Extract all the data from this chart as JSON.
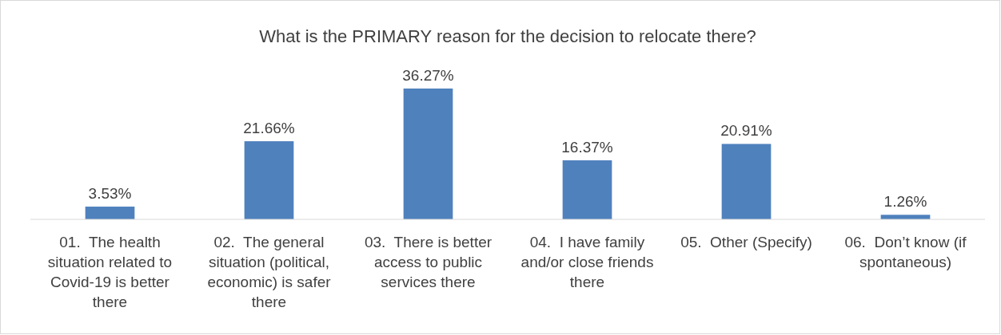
{
  "chart_data": {
    "type": "bar",
    "title": "What is the PRIMARY reason for the decision to relocate there?",
    "categories": [
      "01.  The health situation related to Covid-19 is better there",
      "02.  The general situation (political, economic) is safer there",
      "03.  There is better access to public services there",
      "04.  I have family and/or close friends there",
      "05.  Other (Specify)",
      "06.  Don’t know (if spontaneous)"
    ],
    "values": [
      3.53,
      21.66,
      36.27,
      16.37,
      20.91,
      1.26
    ],
    "value_labels": [
      "3.53%",
      "21.66%",
      "36.27%",
      "16.37%",
      "20.91%",
      "1.26%"
    ],
    "color": "#4f81bd"
  }
}
